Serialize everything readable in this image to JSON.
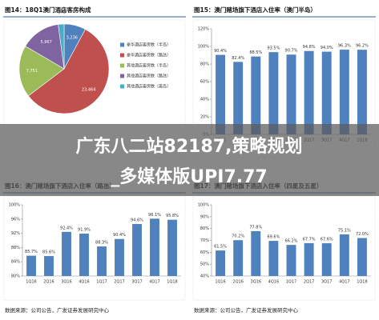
{
  "chart_data": [
    {
      "type": "pie",
      "title": "图14：18Q1澳门酒店客房构成",
      "categories": [
        "豪华酒店客房数（半岛）",
        "豪华酒店客房数（路氹）",
        "其他酒店客房数（半岛）",
        "其他酒店客房数（路氹）",
        "其他酒店客房数（离岛）"
      ],
      "values": [
        3236,
        23464,
        7751,
        5967,
        873
      ],
      "value_labels": [
        "3,236",
        "23,464",
        "7,751",
        "5,967",
        "873"
      ],
      "colors": [
        "#4f81bd",
        "#c0504d",
        "#9bbb59",
        "#8064a2",
        "#4bacc6"
      ]
    },
    {
      "type": "bar",
      "title": "图15：澳门赌场旗下酒店入住率（澳门半岛）",
      "categories": [
        "1Q16",
        "2Q16",
        "3Q16",
        "4Q16",
        "1Q17",
        "2Q17",
        "3Q17",
        "4Q17",
        "1Q18"
      ],
      "values": [
        90.4,
        82.4,
        88.5,
        93.5,
        90.7,
        94.8,
        94.0,
        96.3,
        96.2
      ],
      "value_labels": [
        "90.4%",
        "82.4%",
        "88.5%",
        "93.5%",
        "90.7%",
        "94.8%",
        "94.0%",
        "96.3%",
        "96.2%"
      ],
      "color": "#4f81bd",
      "ylim": [
        0,
        120
      ],
      "yticks": [
        {
          "value": 0,
          "label": "0%"
        },
        {
          "value": 20,
          "label": "20%"
        },
        {
          "value": 40,
          "label": "40%"
        },
        {
          "value": 60,
          "label": "60%"
        },
        {
          "value": 80,
          "label": "80%"
        },
        {
          "value": 100,
          "label": "100%"
        },
        {
          "value": 120,
          "label": "120%"
        }
      ]
    },
    {
      "type": "bar",
      "title": "图16：澳门赌场旗下酒店入住率（路氹）",
      "categories": [
        "1Q16",
        "2Q16",
        "3Q16",
        "4Q16",
        "1Q17",
        "2Q17",
        "3Q17",
        "4Q17",
        "1Q18"
      ],
      "values": [
        85.7,
        85.6,
        92.4,
        91.9,
        88.3,
        90.4,
        94.6,
        96.1,
        95.8
      ],
      "value_labels": [
        "85.7%",
        "85.6%",
        "92.4%",
        "91.9%",
        "88.3%",
        "90.4%",
        "94.6%",
        "96.1%",
        "95.8%"
      ],
      "color": "#4f81bd",
      "ylim": [
        80,
        100
      ],
      "yticks": [
        {
          "value": 80,
          "label": "80%"
        },
        {
          "value": 84,
          "label": "84%"
        },
        {
          "value": 88,
          "label": "88%"
        },
        {
          "value": 92,
          "label": "92%"
        },
        {
          "value": 96,
          "label": "96%"
        },
        {
          "value": 100,
          "label": "100%"
        }
      ],
      "source": "数据来源：公司公告，广发证券发展研究中心"
    },
    {
      "type": "bar",
      "title": "图17：澳门赌场旗下酒店入住率（四星及五星）",
      "categories": [
        "1Q16",
        "2Q16",
        "3Q16",
        "4Q16",
        "1Q17",
        "2Q17",
        "3Q17",
        "4Q17",
        "1Q18"
      ],
      "values": [
        61.5,
        70.2,
        77.8,
        69.6,
        66.2,
        67.7,
        67.6,
        75.1,
        72.0
      ],
      "value_labels": [
        "61.5%",
        "70.2%",
        "77.8%",
        "69.6%",
        "66.2%",
        "67.7%",
        "67.6%",
        "75.1%",
        "72.0%"
      ],
      "color": "#4f81bd",
      "ylim": [
        40,
        100
      ],
      "yticks": [
        {
          "value": 40,
          "label": "40%"
        },
        {
          "value": 50,
          "label": "50%"
        },
        {
          "value": 60,
          "label": "60%"
        },
        {
          "value": 70,
          "label": "70%"
        },
        {
          "value": 80,
          "label": "80%"
        },
        {
          "value": 90,
          "label": "90%"
        },
        {
          "value": 100,
          "label": "100%"
        }
      ],
      "source": "数据来源：公司公告，广发证券发展研究中心"
    }
  ],
  "overlay": {
    "lines": [
      "广东八二站82187,策略规划",
      "_多媒体版UPI7.77"
    ]
  }
}
